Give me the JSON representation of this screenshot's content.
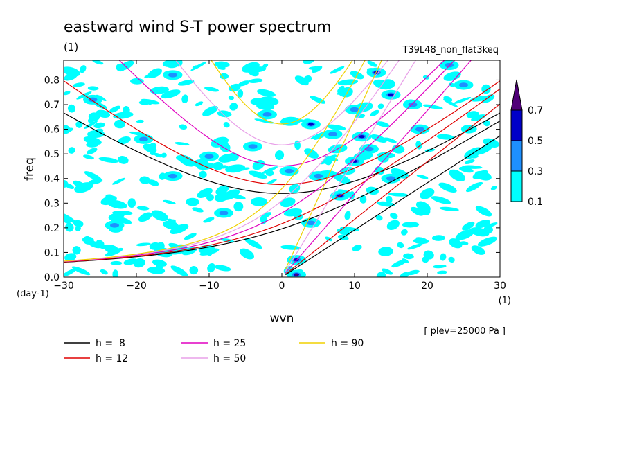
{
  "chart_data": {
    "type": "heatmap",
    "title": "eastward wind S-T power spectrum",
    "subtitle_left": "(1)",
    "subtitle_right": "T39L48_non_flat3keq",
    "xlabel": "wvn",
    "ylabel": "freq",
    "x_unit": "(1)",
    "y_unit": "(day-1)",
    "xlim": [
      -30,
      30
    ],
    "ylim": [
      0,
      0.88
    ],
    "x_ticks": [
      -30,
      -20,
      -10,
      0,
      10,
      20,
      30
    ],
    "x_tick_labels": [
      "−30",
      "−20",
      "−10",
      "0",
      "10",
      "20",
      "30"
    ],
    "y_ticks": [
      0,
      0.1,
      0.2,
      0.3,
      0.4,
      0.5,
      0.6,
      0.7,
      0.8
    ],
    "y_tick_labels": [
      "0.0",
      "0.1",
      "0.2",
      "0.3",
      "0.4",
      "0.5",
      "0.6",
      "0.7",
      "0.8"
    ],
    "annotation": "[ plev=25000 Pa ]",
    "colorbar": {
      "levels": [
        0.1,
        0.3,
        0.5,
        0.7
      ],
      "labels": [
        "0.1",
        "0.3",
        "0.5",
        "0.7"
      ],
      "colors": [
        "#00ffff",
        "#1e90ff",
        "#0000c8",
        "#500078"
      ]
    },
    "dispersion_curves": [
      {
        "label": "h =  8",
        "h": 8,
        "color": "#000000"
      },
      {
        "label": "h = 12",
        "h": 12,
        "color": "#e00000"
      },
      {
        "label": "h = 25",
        "h": 25,
        "color": "#e000c0"
      },
      {
        "label": "h = 50",
        "h": 50,
        "color": "#e8a0e8"
      },
      {
        "label": "h = 90",
        "h": 90,
        "color": "#f0d000"
      }
    ],
    "spectral_peaks": [
      {
        "x": 2,
        "y": 0.01,
        "level": 0.7
      },
      {
        "x": 2,
        "y": 0.07,
        "level": 0.5
      },
      {
        "x": 8,
        "y": 0.33,
        "level": 0.5
      },
      {
        "x": 10,
        "y": 0.47,
        "level": 0.5
      },
      {
        "x": 11,
        "y": 0.57,
        "level": 0.5
      },
      {
        "x": 15,
        "y": 0.74,
        "level": 0.5
      },
      {
        "x": 4,
        "y": 0.62,
        "level": 0.5
      },
      {
        "x": 5,
        "y": 0.41,
        "level": 0.3
      },
      {
        "x": 4,
        "y": 0.22,
        "level": 0.3
      },
      {
        "x": -15,
        "y": 0.82,
        "level": 0.3
      },
      {
        "x": 13,
        "y": 0.83,
        "level": 0.5
      },
      {
        "x": 23,
        "y": 0.86,
        "level": 0.3
      },
      {
        "x": -26,
        "y": 0.72,
        "level": 0.3
      },
      {
        "x": -19,
        "y": 0.56,
        "level": 0.3
      },
      {
        "x": -15,
        "y": 0.41,
        "level": 0.3
      },
      {
        "x": -10,
        "y": 0.49,
        "level": 0.3
      },
      {
        "x": 15,
        "y": 0.4,
        "level": 0.3
      },
      {
        "x": 19,
        "y": 0.6,
        "level": 0.3
      },
      {
        "x": 25,
        "y": 0.78,
        "level": 0.3
      },
      {
        "x": 7,
        "y": 0.58,
        "level": 0.3
      },
      {
        "x": -4,
        "y": 0.53,
        "level": 0.3
      },
      {
        "x": 12,
        "y": 0.52,
        "level": 0.3
      },
      {
        "x": 1,
        "y": 0.43,
        "level": 0.3
      },
      {
        "x": -23,
        "y": 0.21,
        "level": 0.3
      },
      {
        "x": 10,
        "y": 0.68,
        "level": 0.3
      },
      {
        "x": 18,
        "y": 0.7,
        "level": 0.3
      },
      {
        "x": -2,
        "y": 0.66,
        "level": 0.3
      },
      {
        "x": -8,
        "y": 0.26,
        "level": 0.3
      }
    ]
  }
}
